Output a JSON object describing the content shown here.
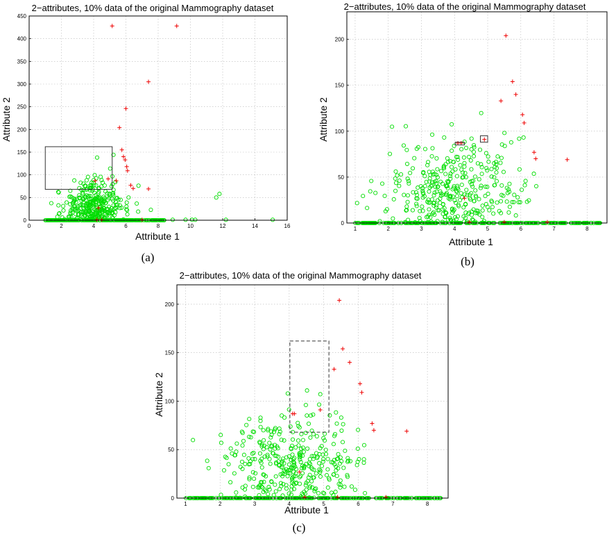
{
  "chart_data": [
    {
      "type": "scatter",
      "caption": "(a)",
      "title": "2−attributes, 10% data of the original Mammography dataset",
      "xlabel": "Attribute 1",
      "ylabel": "Attribute 2",
      "xlim": [
        0,
        16
      ],
      "ylim": [
        0,
        450
      ],
      "xticks": [
        0,
        2,
        4,
        6,
        8,
        10,
        12,
        14,
        16
      ],
      "yticks": [
        0,
        50,
        100,
        150,
        200,
        250,
        300,
        350,
        400,
        450
      ],
      "grid": true,
      "annotation_boxes": [
        {
          "x": [
            1.0,
            5.15
          ],
          "y": [
            68,
            162
          ],
          "style": "solid"
        }
      ],
      "series": [
        {
          "marker": "o",
          "color": "#00dd00",
          "seed": 11,
          "count": 560,
          "description_shape": "cloud"
        },
        {
          "marker": "+",
          "color": "#ee0000",
          "x": [
            5.15,
            9.15,
            7.4,
            6.0,
            5.6,
            5.75,
            5.85,
            6.05,
            6.1,
            6.3,
            6.45,
            5.95,
            7.4,
            4.9,
            5.4,
            4.1,
            4.2,
            4.5,
            7.0,
            4.3
          ],
          "y": [
            428,
            428,
            305,
            246,
            204,
            155,
            140,
            118,
            109,
            77,
            70,
            133,
            69,
            91,
            87,
            87,
            1,
            1,
            1,
            27
          ]
        }
      ]
    },
    {
      "type": "scatter",
      "caption": "(b)",
      "title": "2−attributes, 10% data of the original Mammography dataset",
      "xlabel": "Attribute 1",
      "ylabel": "Attribute 2",
      "xlim": [
        0.75,
        8.6
      ],
      "ylim": [
        0,
        230
      ],
      "xticks": [
        1,
        2,
        3,
        4,
        5,
        6,
        7,
        8
      ],
      "yticks": [
        0,
        50,
        100,
        150,
        200
      ],
      "grid": true,
      "annotation_boxes": [
        {
          "x": [
            4.02,
            4.3
          ],
          "y": [
            85,
            88
          ],
          "style": "solid"
        },
        {
          "x": [
            4.78,
            5.0
          ],
          "y": [
            88,
            95
          ],
          "style": "solid"
        }
      ],
      "series": [
        {
          "marker": "o",
          "color": "#00dd00",
          "seed": 23,
          "count": 620,
          "description_shape": "cloud"
        },
        {
          "marker": "+",
          "color": "#ee0000",
          "x": [
            5.55,
            5.75,
            5.85,
            6.05,
            6.1,
            6.4,
            6.45,
            5.4,
            7.4,
            4.1,
            4.2,
            4.9,
            4.3,
            4.45,
            5.5,
            6.8
          ],
          "y": [
            204,
            154,
            140,
            118,
            109,
            77,
            70,
            133,
            69,
            87,
            87,
            91,
            27,
            1,
            1,
            1
          ]
        }
      ]
    },
    {
      "type": "scatter",
      "caption": "(c)",
      "title": "2−attributes, 10% data of the original Mammography dataset",
      "xlabel": "Attribute 1",
      "ylabel": "Attribute 2",
      "xlim": [
        0.75,
        8.6
      ],
      "ylim": [
        0,
        220
      ],
      "xticks": [
        1,
        2,
        3,
        4,
        5,
        6,
        7,
        8
      ],
      "yticks": [
        0,
        50,
        100,
        150,
        200
      ],
      "grid": true,
      "annotation_boxes": [
        {
          "x": [
            4.02,
            5.15
          ],
          "y": [
            68,
            162
          ],
          "style": "dashed"
        }
      ],
      "series": [
        {
          "marker": "o",
          "color": "#00dd00",
          "seed": 37,
          "count": 620,
          "description_shape": "cloud"
        },
        {
          "marker": "+",
          "color": "#ee0000",
          "x": [
            5.45,
            5.55,
            5.75,
            6.05,
            6.1,
            6.4,
            6.45,
            5.3,
            7.4,
            4.1,
            4.15,
            4.9,
            4.3,
            4.45,
            5.4,
            6.8
          ],
          "y": [
            204,
            154,
            140,
            118,
            109,
            77,
            70,
            133,
            69,
            87,
            87,
            91,
            27,
            1,
            1,
            1
          ]
        }
      ]
    }
  ]
}
